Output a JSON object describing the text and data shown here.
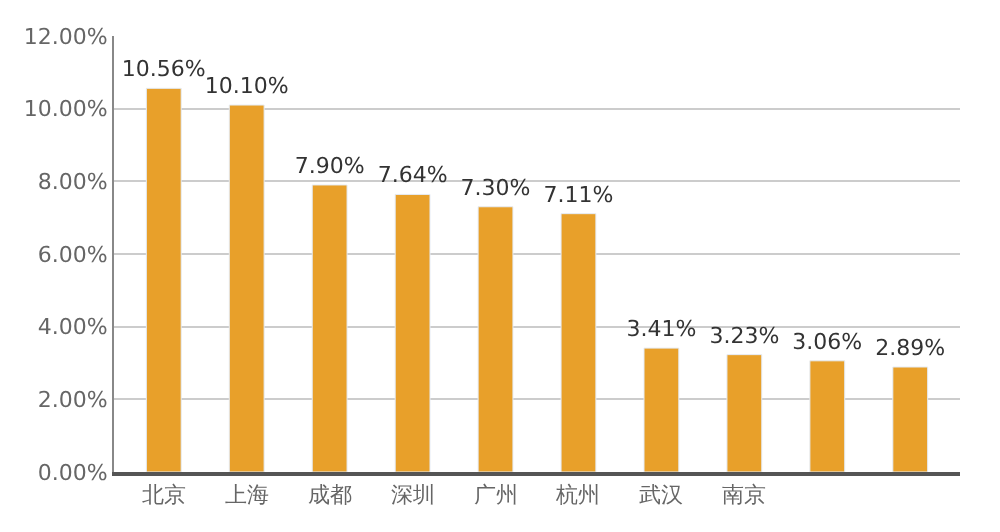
{
  "chart_data": {
    "type": "bar",
    "categories": [
      "北京",
      "上海",
      "成都",
      "深圳",
      "广州",
      "杭州",
      "武汉",
      "南京",
      null,
      null
    ],
    "values": [
      10.56,
      10.1,
      7.9,
      7.64,
      7.3,
      7.11,
      3.41,
      3.23,
      3.06,
      2.89
    ],
    "value_labels": [
      "10.56%",
      "10.10%",
      "7.90%",
      "7.64%",
      "7.30%",
      "7.11%",
      "3.41%",
      "3.23%",
      "3.06%",
      "2.89%"
    ],
    "color": "#e8a02a",
    "ylim": [
      0,
      12
    ],
    "yticks": [
      {
        "value": 0,
        "label": "0.00%"
      },
      {
        "value": 2,
        "label": "2.00%"
      },
      {
        "value": 4,
        "label": "4.00%"
      },
      {
        "value": 6,
        "label": "6.00%"
      },
      {
        "value": 8,
        "label": "8.00%"
      },
      {
        "value": 10,
        "label": "10.00%"
      },
      {
        "value": 12,
        "label": "12.00%"
      }
    ],
    "grid": "y"
  }
}
